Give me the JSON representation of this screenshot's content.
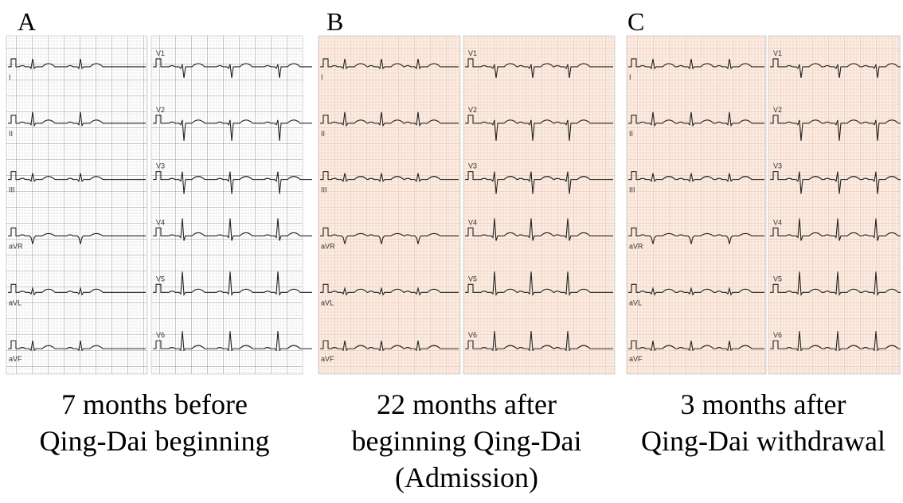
{
  "panels": [
    {
      "letter": "A",
      "leads_left": [
        "I",
        "II",
        "III",
        "aVR",
        "aVL",
        "aVF"
      ],
      "leads_right": [
        "V1",
        "V2",
        "V3",
        "V4",
        "V5",
        "V6"
      ],
      "caption": [
        "7 months before",
        "Qing-Dai beginning"
      ]
    },
    {
      "letter": "B",
      "leads_left": [
        "I",
        "II",
        "III",
        "aVR",
        "aVL",
        "aVF"
      ],
      "leads_right": [
        "V1",
        "V2",
        "V3",
        "V4",
        "V5",
        "V6"
      ],
      "caption": [
        "22 months after",
        "beginning Qing-Dai",
        "(Admission)"
      ]
    },
    {
      "letter": "C",
      "leads_left": [
        "I",
        "II",
        "III",
        "aVR",
        "aVL",
        "aVF"
      ],
      "leads_right": [
        "V1",
        "V2",
        "V3",
        "V4",
        "V5",
        "V6"
      ],
      "caption": [
        "3 months after",
        "Qing-Dai withdrawal"
      ]
    }
  ]
}
